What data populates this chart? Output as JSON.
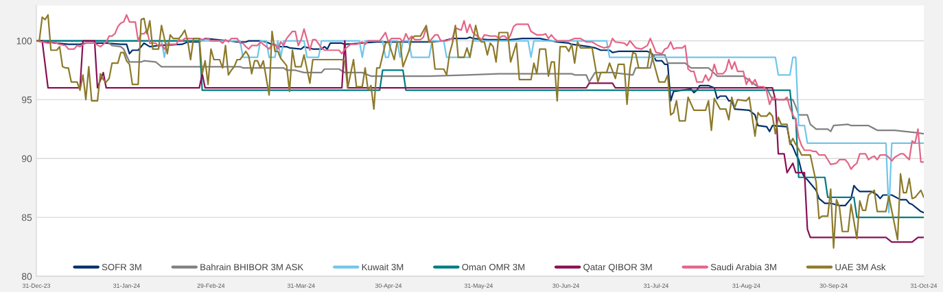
{
  "chart_data": {
    "type": "line",
    "xlim": [
      "2023-12-31",
      "2024-10-31"
    ],
    "xticks": [
      {
        "value": "2023-12-31",
        "label": "31-Dec-23"
      },
      {
        "value": "2024-01-31",
        "label": "31-Jan-24"
      },
      {
        "value": "2024-02-29",
        "label": "29-Feb-24"
      },
      {
        "value": "2024-03-31",
        "label": "31-Mar-24"
      },
      {
        "value": "2024-04-30",
        "label": "30-Apr-24"
      },
      {
        "value": "2024-05-31",
        "label": "31-May-24"
      },
      {
        "value": "2024-06-30",
        "label": "30-Jun-24"
      },
      {
        "value": "2024-07-31",
        "label": "31-Jul-24"
      },
      {
        "value": "2024-08-31",
        "label": "31-Aug-24"
      },
      {
        "value": "2024-09-30",
        "label": "30-Sep-24"
      },
      {
        "value": "2024-10-31",
        "label": "31-Oct-24"
      }
    ],
    "ylim": [
      80,
      103
    ],
    "yticks": [
      80,
      85,
      90,
      95,
      100
    ],
    "grid": "y",
    "legend": "bottom",
    "series": [
      {
        "name": "SOFR 3M",
        "color": "#002f6c",
        "x": [
          "2023-12-31",
          "2024-01-07",
          "2024-01-11",
          "2024-01-15",
          "2024-01-17",
          "2024-01-24",
          "2024-01-29",
          "2024-01-31",
          "2024-02-01",
          "2024-02-02",
          "2024-02-04",
          "2024-02-05",
          "2024-02-06",
          "2024-02-08",
          "2024-02-11",
          "2024-02-19",
          "2024-02-21",
          "2024-02-25",
          "2024-02-27",
          "2024-03-06",
          "2024-03-09",
          "2024-03-12",
          "2024-03-13",
          "2024-03-17",
          "2024-03-19",
          "2024-03-21",
          "2024-03-24",
          "2024-03-26",
          "2024-03-27",
          "2024-03-31",
          "2024-04-01",
          "2024-04-04",
          "2024-04-07",
          "2024-04-08",
          "2024-04-09",
          "2024-04-10",
          "2024-04-14",
          "2024-04-15",
          "2024-04-26",
          "2024-05-14",
          "2024-05-19",
          "2024-05-22",
          "2024-05-27",
          "2024-05-28",
          "2024-05-29",
          "2024-06-03",
          "2024-06-11",
          "2024-06-15",
          "2024-06-21",
          "2024-06-23",
          "2024-06-27",
          "2024-07-01",
          "2024-07-02",
          "2024-07-08",
          "2024-07-10",
          "2024-07-12",
          "2024-07-15",
          "2024-07-16",
          "2024-07-18",
          "2024-07-22",
          "2024-07-28",
          "2024-07-29",
          "2024-07-30",
          "2024-07-31",
          "2024-08-02",
          "2024-08-03",
          "2024-08-04",
          "2024-08-05",
          "2024-08-06",
          "2024-08-09",
          "2024-08-12",
          "2024-08-13",
          "2024-08-14",
          "2024-08-15",
          "2024-08-18",
          "2024-08-20",
          "2024-08-21",
          "2024-08-22",
          "2024-08-24",
          "2024-08-25",
          "2024-08-26",
          "2024-08-27",
          "2024-09-01",
          "2024-09-03",
          "2024-09-04",
          "2024-09-07",
          "2024-09-08",
          "2024-09-09",
          "2024-09-14",
          "2024-09-15",
          "2024-09-16",
          "2024-09-17",
          "2024-09-18",
          "2024-09-19",
          "2024-09-20",
          "2024-09-21",
          "2024-09-23",
          "2024-09-24",
          "2024-09-25",
          "2024-09-27",
          "2024-09-29",
          "2024-10-02",
          "2024-10-04",
          "2024-10-06",
          "2024-10-07",
          "2024-10-08",
          "2024-10-09",
          "2024-10-13",
          "2024-10-15",
          "2024-10-16",
          "2024-10-17",
          "2024-10-20",
          "2024-10-23",
          "2024-10-25",
          "2024-10-26",
          "2024-10-27",
          "2024-10-29",
          "2024-10-30",
          "2024-10-31"
        ],
        "values": [
          100,
          99.8,
          99.7,
          99.7,
          99.8,
          99.8,
          99.7,
          99.7,
          98.9,
          99.2,
          99.2,
          99.5,
          99.8,
          99.5,
          99.6,
          99.7,
          99.9,
          99.9,
          100.2,
          100.0,
          99.9,
          99.9,
          100.0,
          100.0,
          99.9,
          99.7,
          99.5,
          99.5,
          99.4,
          99.3,
          99.5,
          99.3,
          99.3,
          99.5,
          99.3,
          99.8,
          99.8,
          99.7,
          99.9,
          99.9,
          100.0,
          100.2,
          100.2,
          100.3,
          100.2,
          100.1,
          100.1,
          100.2,
          100.2,
          100.1,
          99.9,
          99.8,
          99.7,
          99.5,
          99.4,
          99.2,
          99.2,
          99.0,
          99.1,
          99.1,
          99.1,
          99.0,
          98.8,
          98.3,
          98.3,
          98.0,
          98.0,
          94.9,
          95.7,
          95.8,
          95.9,
          95.6,
          95.8,
          96.2,
          96.2,
          96.0,
          95.1,
          95.3,
          95.3,
          94.9,
          94.9,
          94.2,
          94.1,
          93.7,
          92.8,
          92.7,
          92.3,
          92.8,
          92.7,
          91.4,
          91.0,
          90.4,
          89.9,
          88.9,
          88.4,
          88.2,
          87.6,
          87.3,
          86.6,
          86.2,
          86.2,
          86.0,
          86.0,
          86.6,
          87.7,
          87.4,
          87.2,
          87.2,
          86.9,
          86.6,
          86.9,
          86.9,
          86.5,
          86.5,
          86.2,
          86.1,
          85.7,
          85.5,
          85.4
        ]
      },
      {
        "name": "Bahrain BHIBOR 3M ASK",
        "color": "#808080",
        "x": [
          "2023-12-31",
          "2024-01-24",
          "2024-01-26",
          "2024-01-29",
          "2024-01-30",
          "2024-02-01",
          "2024-02-05",
          "2024-02-06",
          "2024-02-10",
          "2024-02-12",
          "2024-03-10",
          "2024-03-11",
          "2024-03-25",
          "2024-03-26",
          "2024-03-29",
          "2024-04-01",
          "2024-04-07",
          "2024-04-08",
          "2024-04-13",
          "2024-04-15",
          "2024-04-21",
          "2024-04-24",
          "2024-05-14",
          "2024-05-27",
          "2024-06-07",
          "2024-07-02",
          "2024-07-03",
          "2024-07-07",
          "2024-07-08",
          "2024-07-10",
          "2024-07-16",
          "2024-07-23",
          "2024-07-24",
          "2024-07-29",
          "2024-07-30",
          "2024-08-03",
          "2024-08-04",
          "2024-08-10",
          "2024-08-12",
          "2024-08-18",
          "2024-08-21",
          "2024-08-30",
          "2024-09-04",
          "2024-09-07",
          "2024-09-09",
          "2024-09-16",
          "2024-09-17",
          "2024-09-18",
          "2024-09-21",
          "2024-09-22",
          "2024-09-24",
          "2024-09-28",
          "2024-09-29",
          "2024-09-30",
          "2024-10-05",
          "2024-10-06",
          "2024-10-12",
          "2024-10-15",
          "2024-10-21",
          "2024-10-28",
          "2024-10-31"
        ],
        "values": [
          100,
          100,
          99.6,
          99.5,
          99.3,
          98.2,
          98.2,
          98.3,
          98.2,
          97.8,
          97.8,
          97.7,
          97.7,
          97.5,
          97.5,
          97.3,
          97.3,
          97.6,
          97.6,
          97.3,
          97.3,
          97.0,
          97.0,
          97.1,
          97.2,
          97.2,
          97.1,
          97.1,
          96.5,
          97.3,
          97.3,
          97.1,
          97.7,
          97.7,
          98.8,
          98.8,
          98.1,
          98.1,
          97.7,
          97.7,
          97.0,
          97.0,
          96.1,
          96.0,
          95.0,
          95.0,
          94.4,
          93.7,
          93.7,
          92.9,
          92.5,
          92.5,
          92.3,
          92.8,
          92.9,
          92.8,
          92.8,
          92.4,
          92.4,
          92.2,
          92.1
        ]
      },
      {
        "name": "Kuwait 3M",
        "color": "#70c6ea",
        "x": [
          "2023-12-31",
          "2024-02-12",
          "2024-02-13",
          "2024-02-14",
          "2024-03-10",
          "2024-03-11",
          "2024-03-16",
          "2024-03-17",
          "2024-03-19",
          "2024-03-20",
          "2024-03-22",
          "2024-03-23",
          "2024-03-24",
          "2024-03-25",
          "2024-04-01",
          "2024-04-02",
          "2024-04-06",
          "2024-04-07",
          "2024-04-20",
          "2024-04-21",
          "2024-04-22",
          "2024-04-28",
          "2024-04-29",
          "2024-04-30",
          "2024-05-01",
          "2024-05-03",
          "2024-05-04",
          "2024-05-05",
          "2024-05-07",
          "2024-05-08",
          "2024-05-14",
          "2024-05-15",
          "2024-05-19",
          "2024-05-20",
          "2024-05-28",
          "2024-05-29",
          "2024-06-17",
          "2024-06-18",
          "2024-06-19",
          "2024-07-14",
          "2024-07-15",
          "2024-09-10",
          "2024-09-11",
          "2024-09-15",
          "2024-09-16",
          "2024-09-17",
          "2024-09-18",
          "2024-09-20",
          "2024-09-21",
          "2024-10-18",
          "2024-10-19",
          "2024-10-20",
          "2024-10-31"
        ],
        "values": [
          100,
          100,
          98.6,
          100,
          100,
          98.6,
          98.6,
          100,
          100,
          98.6,
          98.6,
          100,
          98.6,
          100,
          100,
          98.6,
          98.6,
          100,
          100,
          98.6,
          100,
          100,
          98.6,
          98.6,
          100,
          100,
          98.6,
          100,
          100,
          98.6,
          98.6,
          100,
          100,
          98.6,
          98.6,
          100,
          100,
          98.6,
          100,
          100,
          98.6,
          98.6,
          97.1,
          97.1,
          98.6,
          98.6,
          92.8,
          92.8,
          91.3,
          91.3,
          85.4,
          91.3,
          91.3
        ]
      },
      {
        "name": "Oman OMR 3M",
        "color": "#007c80",
        "x": [
          "2023-12-31",
          "2024-02-25",
          "2024-02-26",
          "2024-04-27",
          "2024-04-28",
          "2024-05-05",
          "2024-05-06",
          "2024-09-15",
          "2024-09-16",
          "2024-09-17",
          "2024-09-18",
          "2024-09-27",
          "2024-09-28",
          "2024-10-07",
          "2024-10-08",
          "2024-10-31"
        ],
        "values": [
          100,
          100,
          95.8,
          95.8,
          97.5,
          97.5,
          95.8,
          95.8,
          93.4,
          93.4,
          88.4,
          88.4,
          86.7,
          86.7,
          85.0,
          85.0
        ]
      },
      {
        "name": "Qatar QIBOR 3M",
        "color": "#8a0f55",
        "x": [
          "2023-12-31",
          "2024-01-02",
          "2024-01-04",
          "2024-01-15",
          "2024-01-16",
          "2024-01-20",
          "2024-01-21",
          "2024-01-23",
          "2024-01-24",
          "2024-02-25",
          "2024-02-26",
          "2024-02-27",
          "2024-04-14",
          "2024-04-15",
          "2024-04-16",
          "2024-07-07",
          "2024-07-08",
          "2024-07-16",
          "2024-07-17",
          "2024-09-09",
          "2024-09-10",
          "2024-09-11",
          "2024-09-13",
          "2024-09-14",
          "2024-09-16",
          "2024-09-17",
          "2024-09-20",
          "2024-09-21",
          "2024-09-22",
          "2024-10-18",
          "2024-10-20",
          "2024-10-27",
          "2024-10-29",
          "2024-10-31"
        ],
        "values": [
          100,
          100,
          96.0,
          96.0,
          100,
          100,
          96.0,
          97.3,
          96.0,
          96.0,
          97.2,
          96.0,
          96.0,
          100,
          96.0,
          96.0,
          96.4,
          96.4,
          96.0,
          96.0,
          95.0,
          90.4,
          90.4,
          88.8,
          89.6,
          88.8,
          88.8,
          84.0,
          83.3,
          83.3,
          82.9,
          82.9,
          83.3,
          83.3
        ]
      },
      {
        "name": "Saudi Arabia 3M",
        "color": "#e36587",
        "x": [
          "2023-12-31",
          "2024-01-02",
          "2024-01-04",
          "2024-01-06",
          "2024-01-08",
          "2024-01-10",
          "2024-01-11",
          "2024-01-13",
          "2024-01-14",
          "2024-01-15",
          "2024-01-16",
          "2024-01-17",
          "2024-01-20",
          "2024-01-22",
          "2024-01-23",
          "2024-01-24",
          "2024-01-25",
          "2024-01-26",
          "2024-01-27",
          "2024-01-28",
          "2024-01-29",
          "2024-01-30",
          "2024-01-31",
          "2024-02-01",
          "2024-02-03",
          "2024-02-04",
          "2024-02-05",
          "2024-02-06",
          "2024-02-07",
          "2024-02-08",
          "2024-02-10",
          "2024-02-11",
          "2024-02-12",
          "2024-02-13",
          "2024-02-14",
          "2024-02-17",
          "2024-02-18",
          "2024-02-19",
          "2024-02-20",
          "2024-02-25",
          "2024-02-26",
          "2024-02-28",
          "2024-02-29",
          "2024-03-03",
          "2024-03-04",
          "2024-03-05",
          "2024-03-06",
          "2024-03-07",
          "2024-03-09",
          "2024-03-10",
          "2024-03-11",
          "2024-03-12",
          "2024-03-13",
          "2024-03-14",
          "2024-03-16",
          "2024-03-17",
          "2024-03-18",
          "2024-03-20",
          "2024-03-21",
          "2024-03-22",
          "2024-03-23",
          "2024-03-24",
          "2024-03-25",
          "2024-03-26",
          "2024-03-28",
          "2024-03-29",
          "2024-03-30",
          "2024-03-31",
          "2024-04-01",
          "2024-04-03",
          "2024-04-04",
          "2024-04-05",
          "2024-04-07",
          "2024-04-08",
          "2024-04-13",
          "2024-04-14",
          "2024-04-15",
          "2024-04-17",
          "2024-04-19",
          "2024-04-21",
          "2024-04-22",
          "2024-04-23",
          "2024-04-27",
          "2024-04-29",
          "2024-04-30",
          "2024-05-01",
          "2024-05-04",
          "2024-05-05",
          "2024-05-06",
          "2024-05-07",
          "2024-05-08",
          "2024-05-09",
          "2024-05-11",
          "2024-05-12",
          "2024-05-13",
          "2024-05-14",
          "2024-05-16",
          "2024-05-17",
          "2024-05-18",
          "2024-05-20",
          "2024-05-22",
          "2024-05-23",
          "2024-05-24",
          "2024-05-25",
          "2024-05-26",
          "2024-05-27",
          "2024-05-28",
          "2024-05-29",
          "2024-05-31",
          "2024-06-01",
          "2024-06-02",
          "2024-06-04",
          "2024-06-06",
          "2024-06-07",
          "2024-06-08",
          "2024-06-09",
          "2024-06-10",
          "2024-06-11",
          "2024-06-12",
          "2024-06-13",
          "2024-06-17",
          "2024-06-18",
          "2024-06-20",
          "2024-06-22",
          "2024-06-23",
          "2024-06-24",
          "2024-06-25",
          "2024-06-26",
          "2024-06-27",
          "2024-07-01",
          "2024-07-03",
          "2024-07-05",
          "2024-07-07",
          "2024-07-09",
          "2024-07-11",
          "2024-07-13",
          "2024-07-15",
          "2024-07-16",
          "2024-07-17",
          "2024-07-20",
          "2024-07-21",
          "2024-07-22",
          "2024-07-24",
          "2024-07-26",
          "2024-07-28",
          "2024-07-29",
          "2024-07-31",
          "2024-08-02",
          "2024-08-03",
          "2024-08-04",
          "2024-08-05",
          "2024-08-06",
          "2024-08-07",
          "2024-08-09",
          "2024-08-10",
          "2024-08-11",
          "2024-08-12",
          "2024-08-13",
          "2024-08-14",
          "2024-08-16",
          "2024-08-17",
          "2024-08-18",
          "2024-08-19",
          "2024-08-20",
          "2024-08-21",
          "2024-08-23",
          "2024-08-24",
          "2024-08-25",
          "2024-08-26",
          "2024-08-27",
          "2024-08-28",
          "2024-08-30",
          "2024-08-31",
          "2024-09-01",
          "2024-09-02",
          "2024-09-03",
          "2024-09-04",
          "2024-09-06",
          "2024-09-07",
          "2024-09-08",
          "2024-09-09",
          "2024-09-10",
          "2024-09-11",
          "2024-09-13",
          "2024-09-14",
          "2024-09-15",
          "2024-09-16",
          "2024-09-17",
          "2024-09-18",
          "2024-09-19",
          "2024-09-20",
          "2024-09-22",
          "2024-09-23",
          "2024-09-24",
          "2024-09-25",
          "2024-09-27",
          "2024-09-28",
          "2024-09-29",
          "2024-10-01",
          "2024-10-02",
          "2024-10-04",
          "2024-10-05",
          "2024-10-06",
          "2024-10-07",
          "2024-10-08",
          "2024-10-09",
          "2024-10-11",
          "2024-10-12",
          "2024-10-13",
          "2024-10-14",
          "2024-10-15",
          "2024-10-16",
          "2024-10-18",
          "2024-10-19",
          "2024-10-20",
          "2024-10-21",
          "2024-10-23",
          "2024-10-24",
          "2024-10-26",
          "2024-10-27",
          "2024-10-28",
          "2024-10-29",
          "2024-10-30",
          "2024-10-31"
        ],
        "values": [
          100,
          99.9,
          99.8,
          99.9,
          99.7,
          99.6,
          99.3,
          99.3,
          99.6,
          99.5,
          99.7,
          99.8,
          99.8,
          99.5,
          99.7,
          99.9,
          100.4,
          100.4,
          100.6,
          101.2,
          101.5,
          101.6,
          102.2,
          101.6,
          101.6,
          100.0,
          100.6,
          100.6,
          100.9,
          99.8,
          99.8,
          99.5,
          99.7,
          99.3,
          99.7,
          99.7,
          100.1,
          100.0,
          100.2,
          100.2,
          100.1,
          100.2,
          100.0,
          100.0,
          99.8,
          100.1,
          99.9,
          100.2,
          100.2,
          99.8,
          99.8,
          99.5,
          99.3,
          99.6,
          99.6,
          99.9,
          99.7,
          99.3,
          99.7,
          99.7,
          99.3,
          99.9,
          99.6,
          100.2,
          100.8,
          100.8,
          99.6,
          100.1,
          101.0,
          99.2,
          100.1,
          100.1,
          99.4,
          99.2,
          99.2,
          98.9,
          99.3,
          99.7,
          99.7,
          99.9,
          99.7,
          100.0,
          100.0,
          100.7,
          99.9,
          100.2,
          100.2,
          99.9,
          100.6,
          100.1,
          100.4,
          100.1,
          100.1,
          100.3,
          101.1,
          99.9,
          100.5,
          100.5,
          100.0,
          100.0,
          100.2,
          101.1,
          101.0,
          100.9,
          101.7,
          100.7,
          101.4,
          100.7,
          100.3,
          100.1,
          100.5,
          100.4,
          100.4,
          100.2,
          100.4,
          100.4,
          100.1,
          100.5,
          101.2,
          101.4,
          101.4,
          100.8,
          100.5,
          100.5,
          100.6,
          100.2,
          100.5,
          100.2,
          100.0,
          100.0,
          100.2,
          100.2,
          99.9,
          99.9,
          99.6,
          99.4,
          99.5,
          100.2,
          99.9,
          99.8,
          99.6,
          100.0,
          99.4,
          99.3,
          99.6,
          100.2,
          99.0,
          98.9,
          99.3,
          99.4,
          99.9,
          99.3,
          99.4,
          99.4,
          99.6,
          97.6,
          97.4,
          97.4,
          96.5,
          96.5,
          97.1,
          96.6,
          97.0,
          98.0,
          97.2,
          97.2,
          97.5,
          98.4,
          97.6,
          98.2,
          97.4,
          97.4,
          96.3,
          96.8,
          96.3,
          96.7,
          96.1,
          96.1,
          95.7,
          94.6,
          95.2,
          95.1,
          95.0,
          95.0,
          95.2,
          94.3,
          93.7,
          93.3,
          91.8,
          91.1,
          90.7,
          90.7,
          90.6,
          90.6,
          90.3,
          90.3,
          89.9,
          89.5,
          89.6,
          89.9,
          89.9,
          89.6,
          89.1,
          89.4,
          89.6,
          90.4,
          90.4,
          89.9,
          90.1,
          90.2,
          89.9,
          90.3,
          90.3,
          90.1,
          89.8,
          90.1,
          90.4,
          90.4,
          89.9,
          91.5,
          91.3,
          92.5,
          89.7,
          89.7
        ]
      },
      {
        "name": "UAE 3M Ask",
        "color": "#8c7a2a",
        "x": [
          "2023-12-31",
          "2024-01-01",
          "2024-01-02",
          "2024-01-03",
          "2024-01-04",
          "2024-01-05",
          "2024-01-07",
          "2024-01-08",
          "2024-01-09",
          "2024-01-10",
          "2024-01-11",
          "2024-01-12",
          "2024-01-14",
          "2024-01-15",
          "2024-01-16",
          "2024-01-17",
          "2024-01-18",
          "2024-01-19",
          "2024-01-21",
          "2024-01-22",
          "2024-01-23",
          "2024-01-24",
          "2024-01-25",
          "2024-01-26",
          "2024-01-28",
          "2024-01-29",
          "2024-01-30",
          "2024-01-31",
          "2024-02-01",
          "2024-02-02",
          "2024-02-04",
          "2024-02-05",
          "2024-02-06",
          "2024-02-07",
          "2024-02-08",
          "2024-02-09",
          "2024-02-11",
          "2024-02-12",
          "2024-02-13",
          "2024-02-14",
          "2024-02-15",
          "2024-02-16",
          "2024-02-18",
          "2024-02-19",
          "2024-02-20",
          "2024-02-21",
          "2024-02-22",
          "2024-02-23",
          "2024-02-25",
          "2024-02-26",
          "2024-02-27",
          "2024-02-28",
          "2024-02-29",
          "2024-03-01",
          "2024-03-03",
          "2024-03-04",
          "2024-03-05",
          "2024-03-06",
          "2024-03-07",
          "2024-03-08",
          "2024-03-09",
          "2024-03-10",
          "2024-03-12",
          "2024-03-13",
          "2024-03-14",
          "2024-03-15",
          "2024-03-16",
          "2024-03-17",
          "2024-03-18",
          "2024-03-20",
          "2024-03-21",
          "2024-03-22",
          "2024-03-23",
          "2024-03-24",
          "2024-03-26",
          "2024-03-27",
          "2024-03-28",
          "2024-03-29",
          "2024-03-31",
          "2024-04-01",
          "2024-04-03",
          "2024-04-04",
          "2024-04-14",
          "2024-04-15",
          "2024-04-16",
          "2024-04-18",
          "2024-04-19",
          "2024-04-21",
          "2024-04-22",
          "2024-04-23",
          "2024-04-24",
          "2024-04-25",
          "2024-04-26",
          "2024-04-27",
          "2024-04-29",
          "2024-04-30",
          "2024-05-02",
          "2024-05-03",
          "2024-05-04",
          "2024-05-05",
          "2024-05-07",
          "2024-05-08",
          "2024-05-09",
          "2024-05-11",
          "2024-05-13",
          "2024-05-14",
          "2024-05-15",
          "2024-05-16",
          "2024-05-19",
          "2024-05-20",
          "2024-05-21",
          "2024-05-22",
          "2024-05-23",
          "2024-05-24",
          "2024-05-26",
          "2024-05-27",
          "2024-05-28",
          "2024-05-30",
          "2024-05-31",
          "2024-06-01",
          "2024-06-02",
          "2024-06-03",
          "2024-06-04",
          "2024-06-05",
          "2024-06-06",
          "2024-06-07",
          "2024-06-10",
          "2024-06-11",
          "2024-06-13",
          "2024-06-14",
          "2024-06-18",
          "2024-06-19",
          "2024-06-20",
          "2024-06-21",
          "2024-06-23",
          "2024-06-24",
          "2024-06-25",
          "2024-06-26",
          "2024-06-27",
          "2024-06-28",
          "2024-06-30",
          "2024-07-01",
          "2024-07-02",
          "2024-07-03",
          "2024-07-04",
          "2024-07-05",
          "2024-07-09",
          "2024-07-11",
          "2024-07-12",
          "2024-07-14",
          "2024-07-15",
          "2024-07-17",
          "2024-07-18",
          "2024-07-20",
          "2024-07-21",
          "2024-07-22",
          "2024-07-23",
          "2024-07-24",
          "2024-07-25",
          "2024-07-28",
          "2024-07-29",
          "2024-07-30",
          "2024-08-01",
          "2024-08-03",
          "2024-08-04",
          "2024-08-05",
          "2024-08-06",
          "2024-08-07",
          "2024-08-08",
          "2024-08-10",
          "2024-08-11",
          "2024-08-13",
          "2024-08-17",
          "2024-08-18",
          "2024-08-19",
          "2024-08-20",
          "2024-08-22",
          "2024-08-24",
          "2024-08-25",
          "2024-08-26",
          "2024-08-27",
          "2024-08-28",
          "2024-08-31",
          "2024-09-01",
          "2024-09-03",
          "2024-09-04",
          "2024-09-05",
          "2024-09-07",
          "2024-09-08",
          "2024-09-09",
          "2024-09-10",
          "2024-09-11",
          "2024-09-12",
          "2024-09-14",
          "2024-09-15",
          "2024-09-16",
          "2024-09-17",
          "2024-09-18",
          "2024-09-19",
          "2024-09-22",
          "2024-09-24",
          "2024-09-25",
          "2024-09-26",
          "2024-09-28",
          "2024-09-29",
          "2024-09-30",
          "2024-10-01",
          "2024-10-02",
          "2024-10-03",
          "2024-10-05",
          "2024-10-06",
          "2024-10-08",
          "2024-10-09",
          "2024-10-10",
          "2024-10-11",
          "2024-10-12",
          "2024-10-14",
          "2024-10-15",
          "2024-10-18",
          "2024-10-19",
          "2024-10-22",
          "2024-10-23",
          "2024-10-24",
          "2024-10-25",
          "2024-10-26",
          "2024-10-27",
          "2024-10-28",
          "2024-10-30",
          "2024-10-31"
        ],
        "values": [
          100,
          100,
          102.0,
          101.8,
          102.2,
          99.2,
          99.2,
          99.5,
          97.8,
          97.7,
          97.7,
          96.5,
          96.5,
          95.8,
          97.1,
          95.0,
          97.8,
          94.9,
          94.9,
          97.2,
          96.7,
          96.5,
          96.8,
          98.1,
          98.1,
          99.0,
          99.0,
          98.3,
          98.0,
          96.3,
          96.3,
          101.8,
          101.9,
          100.6,
          101.7,
          99.3,
          99.3,
          101.3,
          100.2,
          98.9,
          100.5,
          100.2,
          100.2,
          100.5,
          100.9,
          100.0,
          98.4,
          100.2,
          100.2,
          97.2,
          98.3,
          96.3,
          99.3,
          98.4,
          98.4,
          97.7,
          99.6,
          97.1,
          97.5,
          97.8,
          98.4,
          98.4,
          99.1,
          98.7,
          97.2,
          98.3,
          98.3,
          97.7,
          98.3,
          95.4,
          100.8,
          99.1,
          99.1,
          98.5,
          97.9,
          95.7,
          99.2,
          97.8,
          97.8,
          98.8,
          96.4,
          98.4,
          98.4,
          98.3,
          96.0,
          98.4,
          96.1,
          96.1,
          97.7,
          95.8,
          96.2,
          94.2,
          97.7,
          97.7,
          99.8,
          99.9,
          98.4,
          99.9,
          99.9,
          97.8,
          99.1,
          100.2,
          100.4,
          100.4,
          101.3,
          99.9,
          99.9,
          97.6,
          97.6,
          97.1,
          98.9,
          99.8,
          101.3,
          98.6,
          98.6,
          99.4,
          98.6,
          101.3,
          100.2,
          99.9,
          99.9,
          98.8,
          99.8,
          99.5,
          98.2,
          100.7,
          100.7,
          98.2,
          99.8,
          96.7,
          96.7,
          98.1,
          97.2,
          99.3,
          99.3,
          97.0,
          98.2,
          98.2,
          94.9,
          99.5,
          99.5,
          99.1,
          99.7,
          98.1,
          99.9,
          99.4,
          99.4,
          96.5,
          97.3,
          97.3,
          98.1,
          96.8,
          98.0,
          98.0,
          94.6,
          97.6,
          99.0,
          98.9,
          97.7,
          97.7,
          99.3,
          98.3,
          96.5,
          96.5,
          97.1,
          93.7,
          93.9,
          94.9,
          93.2,
          93.2,
          95.2,
          94.1,
          94.1,
          94.9,
          92.4,
          95.1,
          94.2,
          94.2,
          93.3,
          95.2,
          94.3,
          95.0,
          94.9,
          95.2,
          91.9,
          93.9,
          93.6,
          93.6,
          93.9,
          93.6,
          92.1,
          93.5,
          92.9,
          92.9,
          91.2,
          91.7,
          91.2,
          90.8,
          90.3,
          90.3,
          88.0,
          84.9,
          85.1,
          85.1,
          87.4,
          82.4,
          86.5,
          85.9,
          83.8,
          83.8,
          86.1,
          83.2,
          86.4,
          85.6,
          85.6,
          86.9,
          87.3,
          85.5,
          85.5,
          86.8,
          83.1,
          88.7,
          87.1,
          87.1,
          88.3,
          86.6,
          86.7,
          87.3,
          86.7
        ]
      }
    ]
  }
}
